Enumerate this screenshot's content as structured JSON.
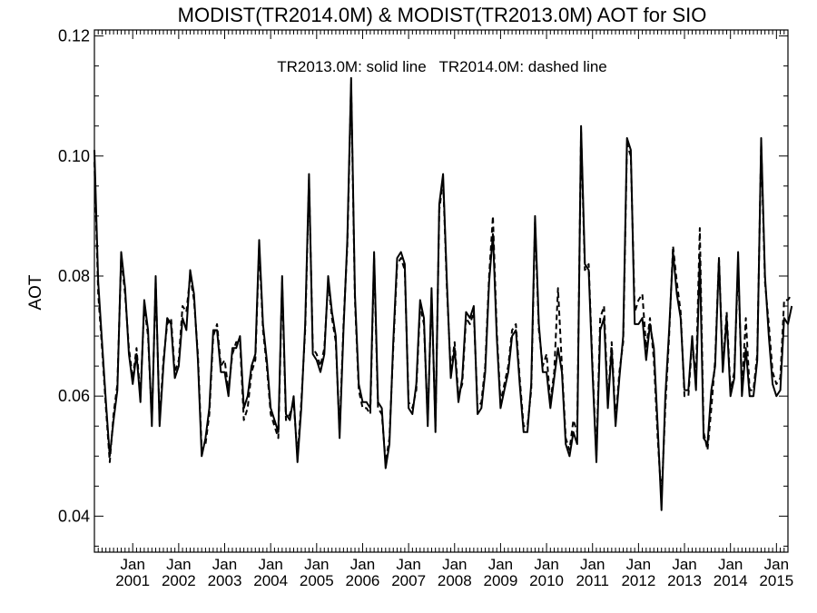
{
  "chart_data": {
    "type": "line",
    "title": "MODIST(TR2014.0M) & MODIST(TR2013.0M)  AOT for SIO",
    "ylabel": "AOT",
    "xlabel": "",
    "annotation": "TR2013.0M: solid line   TR2014.0M: dashed line",
    "xlim": [
      "2000-03",
      "2015-04"
    ],
    "ylim": [
      0.034,
      0.121
    ],
    "y_ticks": [
      0.04,
      0.06,
      0.08,
      0.1,
      0.12
    ],
    "y_tick_labels": [
      "0.04",
      "0.06",
      "0.08",
      "0.10",
      "0.12"
    ],
    "x_ticks": [
      "2001-01",
      "2002-01",
      "2003-01",
      "2004-01",
      "2005-01",
      "2006-01",
      "2007-01",
      "2008-01",
      "2009-01",
      "2010-01",
      "2011-01",
      "2012-01",
      "2013-01",
      "2014-01",
      "2015-01"
    ],
    "x_tick_labels": [
      {
        "month": "Jan",
        "year": "2001"
      },
      {
        "month": "Jan",
        "year": "2002"
      },
      {
        "month": "Jan",
        "year": "2003"
      },
      {
        "month": "Jan",
        "year": "2004"
      },
      {
        "month": "Jan",
        "year": "2005"
      },
      {
        "month": "Jan",
        "year": "2006"
      },
      {
        "month": "Jan",
        "year": "2007"
      },
      {
        "month": "Jan",
        "year": "2008"
      },
      {
        "month": "Jan",
        "year": "2009"
      },
      {
        "month": "Jan",
        "year": "2010"
      },
      {
        "month": "Jan",
        "year": "2011"
      },
      {
        "month": "Jan",
        "year": "2012"
      },
      {
        "month": "Jan",
        "year": "2013"
      },
      {
        "month": "Jan",
        "year": "2014"
      },
      {
        "month": "Jan",
        "year": "2015"
      }
    ],
    "grid": false,
    "start": "2000-03",
    "series": [
      {
        "style": "solid",
        "values": [
          0.101,
          0.079,
          0.069,
          0.059,
          0.05,
          0.056,
          0.061,
          0.084,
          0.078,
          0.067,
          0.062,
          0.067,
          0.059,
          0.076,
          0.071,
          0.055,
          0.08,
          0.055,
          0.065,
          0.073,
          0.072,
          0.063,
          0.065,
          0.073,
          0.071,
          0.081,
          0.077,
          0.066,
          0.05,
          0.053,
          0.058,
          0.071,
          0.071,
          0.064,
          0.064,
          0.06,
          0.068,
          0.068,
          0.07,
          0.058,
          0.06,
          0.065,
          0.067,
          0.086,
          0.072,
          0.066,
          0.058,
          0.056,
          0.054,
          0.08,
          0.057,
          0.056,
          0.06,
          0.049,
          0.058,
          0.072,
          0.097,
          0.067,
          0.066,
          0.064,
          0.067,
          0.08,
          0.074,
          0.07,
          0.053,
          0.071,
          0.086,
          0.113,
          0.077,
          0.062,
          0.059,
          0.059,
          0.058,
          0.084,
          0.059,
          0.058,
          0.048,
          0.052,
          0.069,
          0.083,
          0.084,
          0.082,
          0.058,
          0.057,
          0.062,
          0.076,
          0.073,
          0.055,
          0.078,
          0.054,
          0.092,
          0.097,
          0.079,
          0.063,
          0.068,
          0.059,
          0.063,
          0.074,
          0.073,
          0.075,
          0.057,
          0.058,
          0.064,
          0.079,
          0.087,
          0.07,
          0.058,
          0.061,
          0.064,
          0.07,
          0.071,
          0.062,
          0.054,
          0.054,
          0.062,
          0.09,
          0.072,
          0.064,
          0.064,
          0.058,
          0.063,
          0.068,
          0.064,
          0.052,
          0.05,
          0.054,
          0.052,
          0.105,
          0.082,
          0.081,
          0.064,
          0.049,
          0.071,
          0.073,
          0.058,
          0.068,
          0.055,
          0.063,
          0.07,
          0.103,
          0.101,
          0.072,
          0.072,
          0.073,
          0.066,
          0.072,
          0.068,
          0.055,
          0.041,
          0.06,
          0.071,
          0.084,
          0.077,
          0.073,
          0.061,
          0.061,
          0.07,
          0.061,
          0.083,
          0.053,
          0.052,
          0.061,
          0.065,
          0.083,
          0.064,
          0.073,
          0.06,
          0.063,
          0.084,
          0.06,
          0.068,
          0.06,
          0.06,
          0.066,
          0.103,
          0.08,
          0.07,
          0.062,
          0.06,
          0.061,
          0.073,
          0.072,
          0.075
        ]
      },
      {
        "style": "dashed",
        "values": [
          0.099,
          0.077,
          0.068,
          0.058,
          0.049,
          0.057,
          0.062,
          0.083,
          0.077,
          0.068,
          0.063,
          0.068,
          0.06,
          0.075,
          0.07,
          0.056,
          0.079,
          0.056,
          0.066,
          0.072,
          0.073,
          0.064,
          0.066,
          0.075,
          0.074,
          0.08,
          0.076,
          0.067,
          0.051,
          0.052,
          0.057,
          0.07,
          0.072,
          0.065,
          0.066,
          0.061,
          0.067,
          0.069,
          0.069,
          0.056,
          0.058,
          0.064,
          0.066,
          0.085,
          0.071,
          0.065,
          0.057,
          0.055,
          0.053,
          0.079,
          0.056,
          0.057,
          0.059,
          0.05,
          0.059,
          0.071,
          0.096,
          0.068,
          0.067,
          0.065,
          0.068,
          0.079,
          0.073,
          0.069,
          0.054,
          0.072,
          0.085,
          0.112,
          0.076,
          0.061,
          0.058,
          0.058,
          0.057,
          0.083,
          0.058,
          0.057,
          0.049,
          0.053,
          0.068,
          0.082,
          0.083,
          0.081,
          0.059,
          0.058,
          0.061,
          0.075,
          0.072,
          0.056,
          0.077,
          0.055,
          0.091,
          0.096,
          0.078,
          0.064,
          0.069,
          0.06,
          0.062,
          0.073,
          0.072,
          0.074,
          0.058,
          0.059,
          0.065,
          0.08,
          0.09,
          0.071,
          0.059,
          0.062,
          0.065,
          0.071,
          0.072,
          0.063,
          0.055,
          0.055,
          0.061,
          0.089,
          0.071,
          0.065,
          0.067,
          0.059,
          0.064,
          0.078,
          0.065,
          0.053,
          0.051,
          0.056,
          0.054,
          0.104,
          0.081,
          0.082,
          0.065,
          0.05,
          0.073,
          0.075,
          0.059,
          0.069,
          0.056,
          0.064,
          0.069,
          0.102,
          0.1,
          0.074,
          0.076,
          0.077,
          0.068,
          0.073,
          0.066,
          0.053,
          0.043,
          0.058,
          0.07,
          0.085,
          0.079,
          0.074,
          0.06,
          0.06,
          0.069,
          0.063,
          0.088,
          0.054,
          0.051,
          0.058,
          0.066,
          0.083,
          0.065,
          0.074,
          0.061,
          0.064,
          0.082,
          0.061,
          0.073,
          0.061,
          0.061,
          0.067,
          0.102,
          0.079,
          0.072,
          0.064,
          0.062,
          0.063,
          0.076,
          0.076,
          0.077
        ]
      }
    ]
  }
}
